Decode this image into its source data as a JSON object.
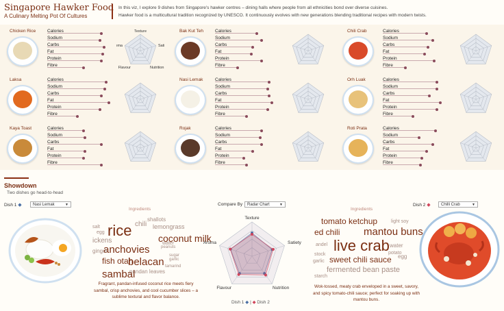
{
  "header": {
    "title": "Singapore Hawker Food",
    "subtitle": "A Culinary Melting Pot Of Cultures",
    "intro_1": "In this viz, I explore 9 dishes from Singapore's hawker centres – dining halls where people from all ethnicities bond over diverse cuisines.",
    "intro_2": "Hawker food is a multicultural tradition recognized by UNESCO. It continuously evolves with new generations blending traditional recipes with modern twists."
  },
  "nutrients": [
    "Calories",
    "Sodium",
    "Carbs",
    "Fat",
    "Protein",
    "Fibre"
  ],
  "radar_axes": [
    "Texture",
    "Satiety",
    "Nutrition",
    "Flavour",
    "Aroma"
  ],
  "dishes": [
    {
      "name": "Chicken Rice",
      "values": [
        0.72,
        0.7,
        0.75,
        0.74,
        0.72,
        0.48
      ],
      "radar": [
        0.55,
        0.6,
        0.5,
        0.6,
        0.5
      ],
      "color": "#e8d9b5"
    },
    {
      "name": "Bak Kut Teh",
      "values": [
        0.55,
        0.62,
        0.5,
        0.48,
        0.62,
        0.3
      ],
      "radar": [
        0.5,
        0.55,
        0.45,
        0.55,
        0.6
      ],
      "color": "#6b3a26"
    },
    {
      "name": "Chili Crab",
      "values": [
        0.58,
        0.66,
        0.6,
        0.55,
        0.68,
        0.3
      ],
      "radar": [
        0.55,
        0.6,
        0.5,
        0.7,
        0.6
      ],
      "color": "#d94a2a"
    },
    {
      "name": "Laksa",
      "values": [
        0.78,
        0.76,
        0.72,
        0.82,
        0.7,
        0.4
      ],
      "radar": [
        0.6,
        0.6,
        0.5,
        0.7,
        0.6
      ],
      "color": "#e26a1f"
    },
    {
      "name": "Nasi Lemak",
      "values": [
        0.72,
        0.7,
        0.72,
        0.75,
        0.7,
        0.42
      ],
      "radar": [
        0.6,
        0.65,
        0.55,
        0.65,
        0.55
      ],
      "color": "#f5f1e6"
    },
    {
      "name": "Orh Luak",
      "values": [
        0.72,
        0.72,
        0.62,
        0.76,
        0.72,
        0.4
      ],
      "radar": [
        0.5,
        0.55,
        0.45,
        0.6,
        0.55
      ],
      "color": "#e8c27a"
    },
    {
      "name": "Kaya Toast",
      "values": [
        0.48,
        0.5,
        0.72,
        0.5,
        0.48,
        0.72
      ],
      "radar": [
        0.55,
        0.5,
        0.4,
        0.55,
        0.5
      ],
      "color": "#c98a3a"
    },
    {
      "name": "Rojak",
      "values": [
        0.62,
        0.6,
        0.62,
        0.5,
        0.38,
        0.42
      ],
      "radar": [
        0.55,
        0.5,
        0.5,
        0.6,
        0.5
      ],
      "color": "#5a3a2a"
    },
    {
      "name": "Roti Prata",
      "values": [
        0.7,
        0.48,
        0.66,
        0.58,
        0.52,
        0.5
      ],
      "radar": [
        0.5,
        0.55,
        0.45,
        0.5,
        0.5
      ],
      "color": "#e6b35a"
    }
  ],
  "showdown": {
    "title": "Showdown",
    "subtitle": "Two dishes go head-to-head",
    "dish1_label": "Dish 1",
    "dish2_label": "Dish 2",
    "dish1_value": "Nasi Lemak",
    "dish2_value": "Chilli Crab",
    "compare_label": "Compare By",
    "compare_value": "Radar Chart",
    "ingredients_label": "Ingredients",
    "legend_dish1": "Dish 1",
    "legend_dish2": "Dish 2",
    "dish1_color": "#4a6fa5",
    "dish2_color": "#d0455b",
    "dish1_radar": [
      0.68,
      0.62,
      0.62,
      0.62,
      0.66
    ],
    "dish2_radar": [
      0.64,
      0.65,
      0.68,
      0.66,
      0.67
    ],
    "desc1": "Fragrant, pandan-infused coconut rice meets fiery sambal, crisp anchovies, and cool cucumber slices – a sublime textural and flavor balance.",
    "desc2": "Wok-tossed, meaty crab enveloped in a sweet, savory, and spicy tomato-chili sauce; perfect for soaking up with mantou buns.",
    "cloud1": [
      {
        "t": "rice",
        "s": 22,
        "c": "#7a2e12"
      },
      {
        "t": "coconut milk",
        "s": 14,
        "c": "#7a2e12"
      },
      {
        "t": "anchovies",
        "s": 15,
        "c": "#7a2e12"
      },
      {
        "t": "fish otah",
        "s": 12,
        "c": "#7a2e12"
      },
      {
        "t": "belacan",
        "s": 15,
        "c": "#7a2e12"
      },
      {
        "t": "sambal",
        "s": 15,
        "c": "#7a2e12"
      },
      {
        "t": "chili",
        "s": 10,
        "c": "#a88f86"
      },
      {
        "t": "lemongrass",
        "s": 9,
        "c": "#a88f86"
      },
      {
        "t": "shallots",
        "s": 8,
        "c": "#a88f86"
      },
      {
        "t": "ickens",
        "s": 10,
        "c": "#a88f86"
      },
      {
        "t": "ginger",
        "s": 8,
        "c": "#a88f86"
      },
      {
        "t": "egg",
        "s": 7,
        "c": "#a88f86"
      },
      {
        "t": "salt",
        "s": 7,
        "c": "#a88f86"
      },
      {
        "t": "pandan leaves",
        "s": 8,
        "c": "#a88f86"
      },
      {
        "t": "water",
        "s": 7,
        "c": "#a88f86"
      },
      {
        "t": "sugar",
        "s": 6,
        "c": "#a88f86"
      },
      {
        "t": "peanuts",
        "s": 6,
        "c": "#a88f86"
      },
      {
        "t": "garlic",
        "s": 6,
        "c": "#a88f86"
      },
      {
        "t": "tamarind",
        "s": 6,
        "c": "#a88f86"
      }
    ],
    "cloud2": [
      {
        "t": "tomato ketchup",
        "s": 12,
        "c": "#7a2e12"
      },
      {
        "t": "ed chili",
        "s": 12,
        "c": "#7a2e12"
      },
      {
        "t": "mantou buns",
        "s": 15,
        "c": "#7a2e12"
      },
      {
        "t": "live crab",
        "s": 22,
        "c": "#7a2e12"
      },
      {
        "t": "sweet chili sauce",
        "s": 12,
        "c": "#7a2e12"
      },
      {
        "t": "fermented bean paste",
        "s": 11,
        "c": "#a88f86"
      },
      {
        "t": "light soy",
        "s": 7,
        "c": "#a88f86"
      },
      {
        "t": "water",
        "s": 8,
        "c": "#a88f86"
      },
      {
        "t": "potato",
        "s": 7,
        "c": "#a88f86"
      },
      {
        "t": "egg",
        "s": 8,
        "c": "#a88f86"
      },
      {
        "t": "stock",
        "s": 7,
        "c": "#a88f86"
      },
      {
        "t": "andel",
        "s": 7,
        "c": "#a88f86"
      },
      {
        "t": "garlic",
        "s": 7,
        "c": "#a88f86"
      },
      {
        "t": "starch",
        "s": 7,
        "c": "#a88f86"
      }
    ]
  }
}
